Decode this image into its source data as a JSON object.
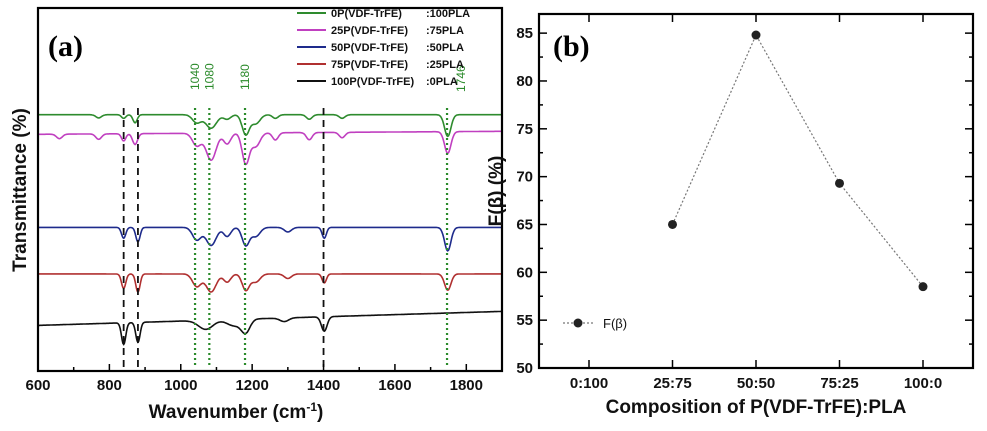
{
  "chart_data": [
    {
      "type": "line",
      "panel_label": "(a)",
      "xlabel": "Wavenumber (cm",
      "xlabel_sup": "-1",
      "xlabel_end": ")",
      "ylabel": "Transmittance (%)",
      "xlim": [
        600,
        1900
      ],
      "x_ticks": [
        "600",
        "800",
        "1000",
        "1200",
        "1400",
        "1600",
        "1800"
      ],
      "legend_placement": "top-right",
      "series": [
        {
          "name": "0P(VDF-TrFE)",
          "ratio": ":100PLA",
          "color": "#2e8b2e",
          "baseline": 0.06,
          "bands": [
            [
              770,
              0.35,
              8
            ],
            [
              840,
              0.4,
              6
            ],
            [
              872,
              0.9,
              6
            ],
            [
              1045,
              0.9,
              12
            ],
            [
              1085,
              1.5,
              15
            ],
            [
              1130,
              0.5,
              10
            ],
            [
              1182,
              2.2,
              10
            ],
            [
              1210,
              1.0,
              12
            ],
            [
              1265,
              0.4,
              8
            ],
            [
              1360,
              0.5,
              8
            ],
            [
              1452,
              0.4,
              8
            ],
            [
              1748,
              2.4,
              9
            ]
          ]
        },
        {
          "name": "25P(VDF-TrFE)",
          "ratio": ":75PLA",
          "color": "#c040c0",
          "baseline": 0.14,
          "bands": [
            [
              660,
              0.5,
              8
            ],
            [
              770,
              0.6,
              8
            ],
            [
              840,
              0.8,
              6
            ],
            [
              872,
              1.2,
              7
            ],
            [
              1045,
              1.4,
              12
            ],
            [
              1085,
              3.0,
              14
            ],
            [
              1130,
              1.2,
              10
            ],
            [
              1182,
              3.4,
              10
            ],
            [
              1210,
              1.5,
              12
            ],
            [
              1265,
              0.8,
              8
            ],
            [
              1360,
              0.8,
              8
            ],
            [
              1452,
              0.6,
              8
            ],
            [
              1748,
              2.4,
              9
            ]
          ]
        },
        {
          "name": "50P(VDF-TrFE)",
          "ratio": ":50PLA",
          "color": "#1e2b8c",
          "baseline": 0.52,
          "bands": [
            [
              840,
              1.2,
              6
            ],
            [
              880,
              1.6,
              6
            ],
            [
              1045,
              1.4,
              12
            ],
            [
              1085,
              2.0,
              14
            ],
            [
              1130,
              1.0,
              10
            ],
            [
              1182,
              2.0,
              10
            ],
            [
              1210,
              1.0,
              12
            ],
            [
              1300,
              0.5,
              10
            ],
            [
              1402,
              1.2,
              6
            ],
            [
              1748,
              2.6,
              9
            ]
          ]
        },
        {
          "name": "75P(VDF-TrFE)",
          "ratio": ":25PLA",
          "color": "#b03030",
          "baseline": 0.71,
          "bands": [
            [
              840,
              1.6,
              6
            ],
            [
              880,
              2.0,
              6
            ],
            [
              1045,
              1.4,
              12
            ],
            [
              1085,
              2.0,
              14
            ],
            [
              1130,
              0.9,
              10
            ],
            [
              1182,
              1.8,
              10
            ],
            [
              1210,
              0.9,
              12
            ],
            [
              1300,
              0.5,
              10
            ],
            [
              1402,
              1.0,
              6
            ],
            [
              1748,
              1.8,
              9
            ]
          ]
        },
        {
          "name": "100P(VDF-TrFE)",
          "ratio": ":0PLA",
          "color": "#111111",
          "baseline": 0.92,
          "bands": [
            [
              840,
              2.4,
              6
            ],
            [
              880,
              2.2,
              6
            ],
            [
              1070,
              1.0,
              20
            ],
            [
              1150,
              0.7,
              20
            ],
            [
              1182,
              1.4,
              12
            ],
            [
              1290,
              0.4,
              12
            ],
            [
              1402,
              1.6,
              8
            ]
          ]
        }
      ],
      "vertical_markers": [
        {
          "x": 840,
          "style": "dashed",
          "color": "#111111"
        },
        {
          "x": 880,
          "style": "dashed",
          "color": "#111111"
        },
        {
          "x": 1400,
          "style": "dashed",
          "color": "#111111"
        },
        {
          "x": 1040,
          "style": "dotted",
          "color": "#2a8a2a",
          "label": "1040"
        },
        {
          "x": 1080,
          "style": "dotted",
          "color": "#2a8a2a",
          "label": "1080"
        },
        {
          "x": 1180,
          "style": "dotted",
          "color": "#2a8a2a",
          "label": "1180"
        },
        {
          "x": 1746,
          "style": "dotted",
          "color": "#2a8a2a",
          "label": "1746"
        }
      ]
    },
    {
      "type": "scatter",
      "panel_label": "(b)",
      "xlabel": "Composition of P(VDF-TrFE):PLA",
      "ylabel": "F(β) (%)",
      "categories": [
        "0:100",
        "25:75",
        "50:50",
        "75:25",
        "100:0"
      ],
      "x": [
        "25:75",
        "50:50",
        "75:25",
        "100:0"
      ],
      "values": [
        65.0,
        84.8,
        69.3,
        58.5
      ],
      "ylim": [
        50,
        87
      ],
      "y_ticks": [
        50,
        55,
        60,
        65,
        70,
        75,
        80,
        85
      ],
      "line_style": "dotted",
      "series_name": "F(β)",
      "legend_placement": "bottom-left"
    }
  ]
}
